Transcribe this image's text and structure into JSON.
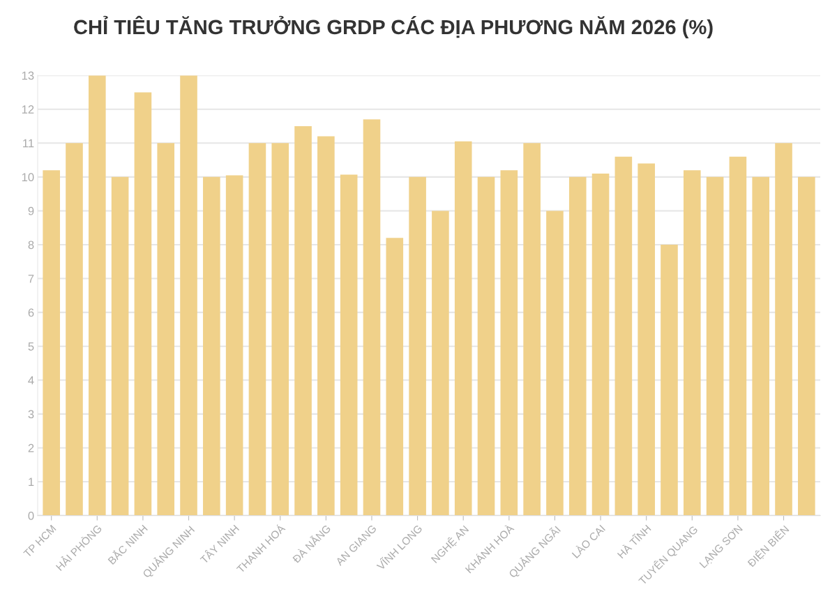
{
  "chart_data": {
    "type": "bar",
    "title": "CHỈ TIÊU TĂNG TRƯỞNG GRDP CÁC ĐỊA PHƯƠNG NĂM 2026 (%)",
    "categories": [
      "TP HCM",
      null,
      "HẢI PHÒNG",
      null,
      "BẮC NINH",
      null,
      "QUẢNG NINH",
      null,
      "TÂY NINH",
      null,
      "THANH HOÁ",
      null,
      "ĐÀ NẴNG",
      null,
      "AN GIANG",
      null,
      "VĨNH LONG",
      null,
      "NGHỆ AN",
      null,
      "KHÁNH HOÀ",
      null,
      "QUẢNG NGÃI",
      null,
      "LÀO CAI",
      null,
      "HÀ TĨNH",
      null,
      "TUYÊN QUANG",
      null,
      "LẠNG SƠN",
      null,
      "ĐIỆN BIÊN",
      null
    ],
    "values": [
      10.2,
      11,
      13,
      10,
      12.5,
      11,
      13,
      10,
      10.05,
      11,
      11,
      11.5,
      11.2,
      10.07,
      11.7,
      8.2,
      10,
      9,
      11.05,
      10,
      10.2,
      11,
      9,
      10,
      10.1,
      10.6,
      10.4,
      8,
      10.2,
      10,
      10.6,
      10,
      11,
      10
    ],
    "color": "#f0d18a",
    "ylim": [
      0,
      13
    ],
    "yticks": [
      0,
      1,
      2,
      3,
      4,
      5,
      6,
      7,
      8,
      9,
      10,
      11,
      12,
      13
    ],
    "grid": "y"
  }
}
